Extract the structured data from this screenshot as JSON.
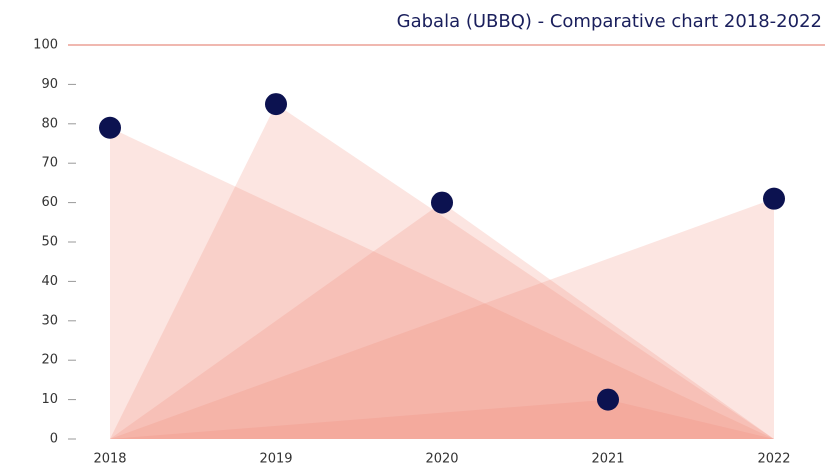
{
  "chart_data": {
    "type": "triangle",
    "title": "Gabala (UBBQ) - Comparative chart 2018-2022",
    "categories": [
      "2018",
      "2019",
      "2020",
      "2021",
      "2022"
    ],
    "values": [
      79,
      85,
      60,
      10,
      61
    ],
    "color": "#f08a78",
    "marker_color": "#0c1250",
    "ylim": [
      0,
      100
    ],
    "yticks": [
      0,
      10,
      20,
      30,
      40,
      50,
      60,
      70,
      80,
      90,
      100
    ]
  }
}
